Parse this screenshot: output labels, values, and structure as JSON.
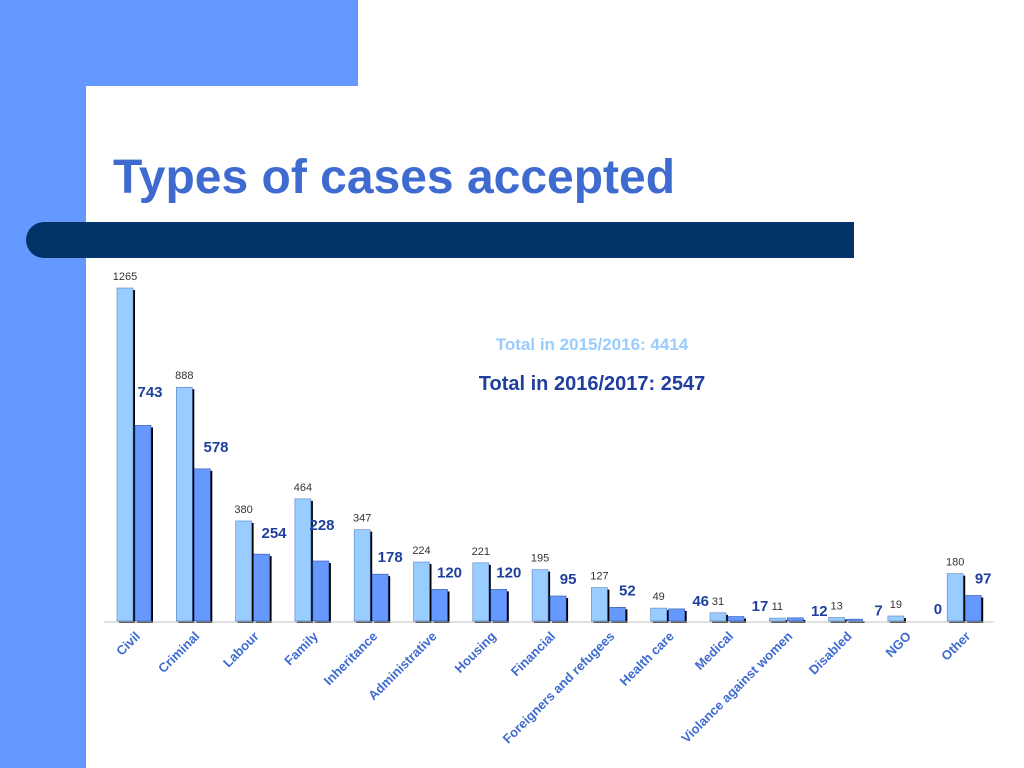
{
  "slide": {
    "title": "Types of cases accepted"
  },
  "colors": {
    "background_accent": "#6699ff",
    "band": "#003366",
    "title": "#3f6bd0",
    "series_2015_fill": "#99ccff",
    "series_2016_fill": "#6699ff",
    "label_2015": "#333333",
    "label_2016": "#1f3f9f",
    "total_2015": "#99ccff",
    "total_2016": "#1f3f9f"
  },
  "chart_data": {
    "type": "bar",
    "title": "",
    "xlabel": "",
    "ylabel": "",
    "ylim": [
      0,
      1265
    ],
    "grid": false,
    "categories": [
      "Civil",
      "Criminal",
      "Labour",
      "Family",
      "Inheritance",
      "Administrative",
      "Housing",
      "Financial",
      "Foreigners and refugees",
      "Health care",
      "Medical",
      "Violance against women",
      "Disabled",
      "NGO",
      "Other"
    ],
    "series": [
      {
        "values": [
          1265,
          888,
          380,
          464,
          347,
          224,
          221,
          195,
          127,
          49,
          31,
          11,
          13,
          19,
          180
        ]
      },
      {
        "values": [
          743,
          578,
          254,
          228,
          178,
          120,
          120,
          95,
          52,
          46,
          17,
          12,
          7,
          0,
          97
        ]
      }
    ],
    "annotations": [
      {
        "text": "Total in 2015/2016: 4414"
      },
      {
        "text": "Total in 2016/2017: 2547"
      }
    ]
  }
}
